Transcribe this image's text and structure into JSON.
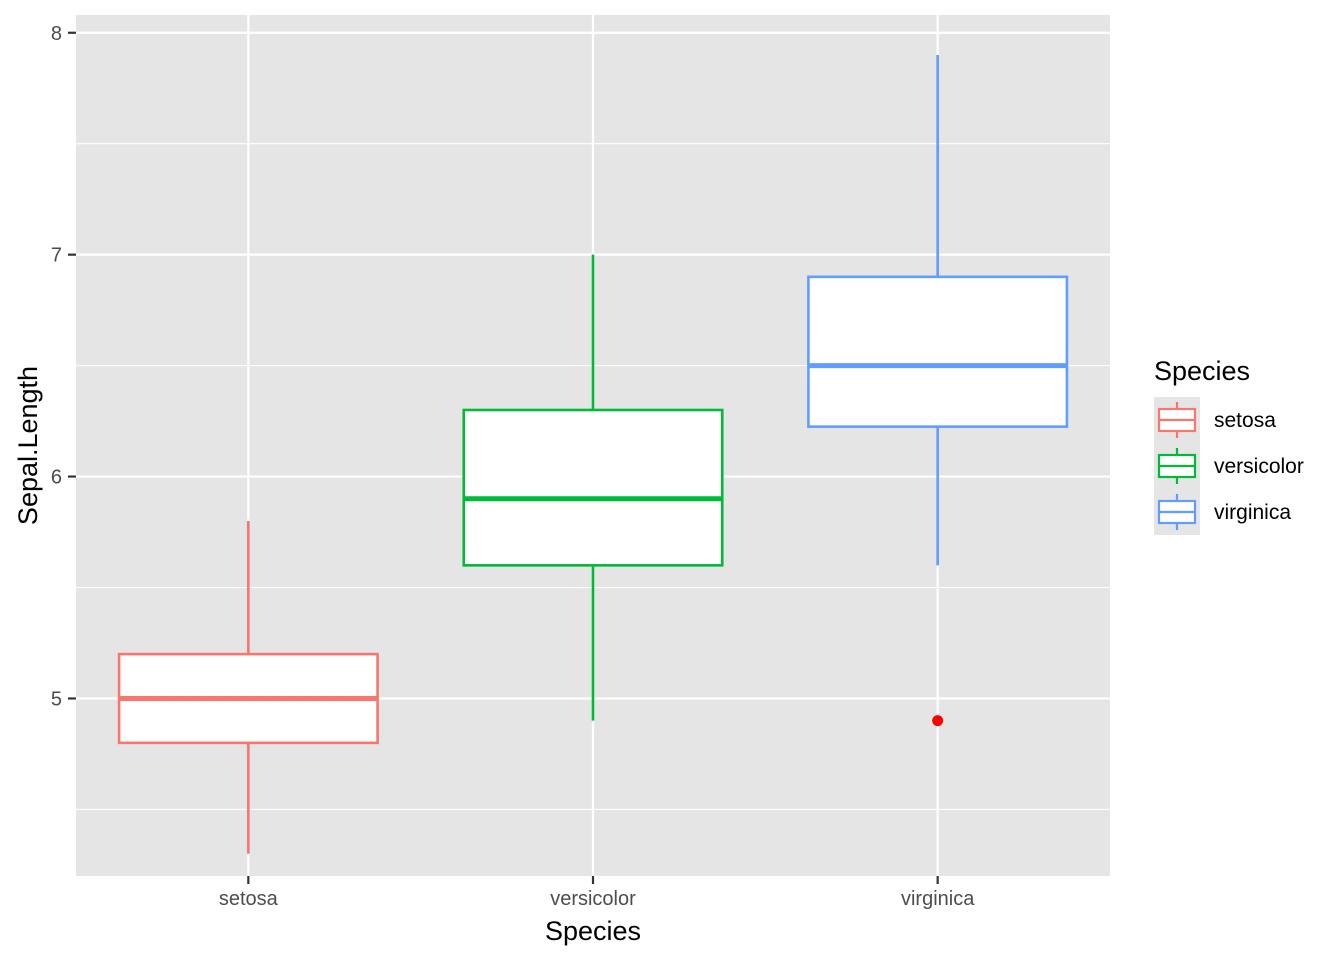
{
  "chart_data": {
    "type": "boxplot",
    "title": "",
    "xlabel": "Species",
    "ylabel": "Sepal.Length",
    "ylim": [
      4.2,
      8.08
    ],
    "y_major_ticks": [
      5,
      6,
      7,
      8
    ],
    "y_minor_gridlines": [
      4.5,
      5.5,
      6.5,
      7.5
    ],
    "grid": true,
    "legend": {
      "title": "Species",
      "placement": "right",
      "entries": [
        "setosa",
        "versicolor",
        "virginica"
      ]
    },
    "categories": [
      "setosa",
      "versicolor",
      "virginica"
    ],
    "series": [
      {
        "name": "setosa",
        "color": "#F8766D",
        "whisker_low": 4.3,
        "q1": 4.8,
        "median": 5.0,
        "q3": 5.2,
        "whisker_high": 5.8,
        "outliers": []
      },
      {
        "name": "versicolor",
        "color": "#00BA38",
        "whisker_low": 4.9,
        "q1": 5.6,
        "median": 5.9,
        "q3": 6.3,
        "whisker_high": 7.0,
        "outliers": []
      },
      {
        "name": "virginica",
        "color": "#619CFF",
        "whisker_low": 5.6,
        "q1": 6.225,
        "median": 6.5,
        "q3": 6.9,
        "whisker_high": 7.9,
        "outliers": [
          4.9
        ]
      }
    ],
    "outlier_color": "#FF0000",
    "panel_background": "#E5E5E5",
    "gridline_color": "#FFFFFF"
  }
}
